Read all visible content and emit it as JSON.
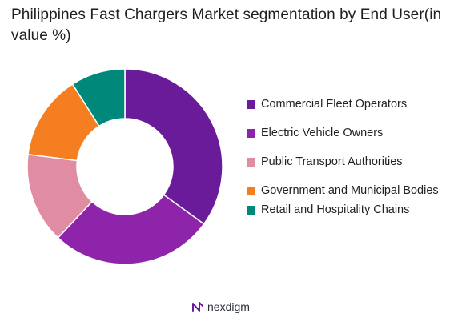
{
  "title": "Philippines Fast Chargers Market segmentation by End User(in value %)",
  "chart_data": {
    "type": "pie",
    "variant": "donut",
    "categories": [
      "Commercial Fleet Operators",
      "Electric Vehicle Owners",
      "Public Transport Authorities",
      "Government and Municipal Bodies",
      "Retail and Hospitality Chains"
    ],
    "values": [
      35,
      27,
      15,
      14,
      9
    ],
    "colors": [
      "#6a1b9a",
      "#8e24aa",
      "#e08da3",
      "#f57f20",
      "#00897b"
    ],
    "legend_position": "right"
  },
  "brand": {
    "name": "nexdigm",
    "icon": "nexdigm-logo-icon"
  }
}
